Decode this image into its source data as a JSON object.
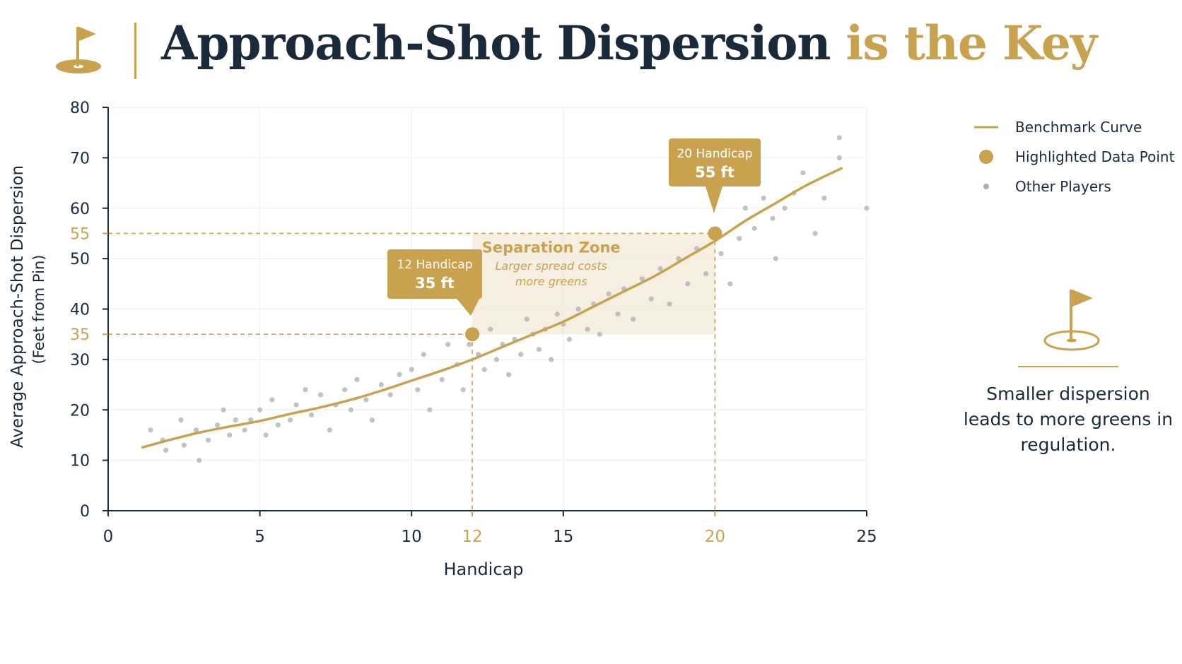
{
  "header": {
    "title_main": "Approach-Shot Dispersion",
    "title_accent": "is the Key",
    "icon": "golf-flag-icon"
  },
  "colors": {
    "gold": "#C9A24F",
    "navy": "#1B2A3A",
    "gray_dots": "#A9AFB6",
    "zone_fill": "#F3E8D6"
  },
  "legend": {
    "curve": "Benchmark Curve",
    "highlight": "Highlighted Data Point",
    "others": "Other Players"
  },
  "side": {
    "icon": "golf-flag-icon",
    "note": "Smaller dispersion leads to more greens in regulation."
  },
  "chart_data": {
    "type": "scatter",
    "xlabel": "Handicap",
    "ylabel": "Average Approach-Shot Dispersion",
    "ylabel_sub": "(Feet from Pin)",
    "xlim": [
      0,
      25
    ],
    "ylim": [
      0,
      80
    ],
    "x_ticks": [
      0,
      5,
      10,
      12,
      15,
      20,
      25
    ],
    "y_ticks": [
      0,
      10,
      20,
      30,
      35,
      40,
      50,
      55,
      60,
      70,
      80
    ],
    "highlight_ticks_x": [
      12,
      20
    ],
    "highlight_ticks_y": [
      35,
      55
    ],
    "grid": true,
    "legend_position": "top-right",
    "benchmark_curve": {
      "name": "Benchmark Curve",
      "x": [
        1.1,
        2,
        3,
        4,
        5,
        6,
        7,
        8,
        9,
        10,
        11,
        12,
        13,
        14,
        15,
        16,
        17,
        18,
        19,
        20,
        21,
        22,
        23,
        24.2
      ],
      "y": [
        12.5,
        14,
        15.5,
        16.7,
        17.8,
        19.2,
        20.5,
        22,
        23.8,
        25.8,
        27.8,
        30,
        32.5,
        35,
        37.5,
        40.5,
        43.5,
        46.5,
        50,
        53.5,
        57.5,
        61,
        64.5,
        68
      ]
    },
    "highlighted_points": [
      {
        "x": 12,
        "y": 35,
        "label_line1": "12 Handicap",
        "label_line2": "35 ft"
      },
      {
        "x": 20,
        "y": 55,
        "label_line1": "20 Handicap",
        "label_line2": "55 ft"
      }
    ],
    "zone": {
      "x_range": [
        12,
        20
      ],
      "title": "Separation Zone",
      "subtitle_line1": "Larger spread costs",
      "subtitle_line2": "more greens"
    },
    "other_players": [
      [
        1.4,
        16
      ],
      [
        1.8,
        14
      ],
      [
        1.9,
        12
      ],
      [
        2.4,
        18
      ],
      [
        2.5,
        13
      ],
      [
        2.9,
        16
      ],
      [
        3,
        10
      ],
      [
        3.3,
        14
      ],
      [
        3.6,
        17
      ],
      [
        3.8,
        20
      ],
      [
        4,
        15
      ],
      [
        4.2,
        18
      ],
      [
        4.5,
        16
      ],
      [
        4.7,
        18
      ],
      [
        5,
        20
      ],
      [
        5.2,
        15
      ],
      [
        5.4,
        22
      ],
      [
        5.6,
        17
      ],
      [
        6,
        18
      ],
      [
        6.2,
        21
      ],
      [
        6.5,
        24
      ],
      [
        6.7,
        19
      ],
      [
        7,
        23
      ],
      [
        7.3,
        16
      ],
      [
        7.5,
        21
      ],
      [
        7.8,
        24
      ],
      [
        8,
        20
      ],
      [
        8.2,
        26
      ],
      [
        8.5,
        22
      ],
      [
        8.7,
        18
      ],
      [
        9,
        25
      ],
      [
        9.3,
        23
      ],
      [
        9.6,
        27
      ],
      [
        10,
        28
      ],
      [
        10.2,
        24
      ],
      [
        10.4,
        31
      ],
      [
        10.6,
        20
      ],
      [
        11,
        26
      ],
      [
        11.2,
        33
      ],
      [
        11.5,
        29
      ],
      [
        11.7,
        24
      ],
      [
        11.9,
        33
      ],
      [
        12.2,
        31
      ],
      [
        12.4,
        28
      ],
      [
        12.6,
        36
      ],
      [
        12.8,
        30
      ],
      [
        13,
        33
      ],
      [
        13.2,
        27
      ],
      [
        13.4,
        34
      ],
      [
        13.6,
        31
      ],
      [
        13.8,
        38
      ],
      [
        14,
        35
      ],
      [
        14.2,
        32
      ],
      [
        14.4,
        36
      ],
      [
        14.6,
        30
      ],
      [
        14.8,
        39
      ],
      [
        15,
        37
      ],
      [
        15.2,
        34
      ],
      [
        15.5,
        40
      ],
      [
        15.8,
        36
      ],
      [
        16,
        41
      ],
      [
        16.2,
        35
      ],
      [
        16.5,
        43
      ],
      [
        16.8,
        39
      ],
      [
        17,
        44
      ],
      [
        17.3,
        38
      ],
      [
        17.6,
        46
      ],
      [
        17.9,
        42
      ],
      [
        18.2,
        48
      ],
      [
        18.5,
        41
      ],
      [
        18.8,
        50
      ],
      [
        19.1,
        45
      ],
      [
        19.4,
        52
      ],
      [
        19.7,
        47
      ],
      [
        20.2,
        51
      ],
      [
        20.5,
        45
      ],
      [
        20.8,
        54
      ],
      [
        21,
        60
      ],
      [
        21.3,
        56
      ],
      [
        21.6,
        62
      ],
      [
        21.9,
        58
      ],
      [
        22,
        50
      ],
      [
        22.3,
        60
      ],
      [
        22.6,
        63
      ],
      [
        22.9,
        67
      ],
      [
        23.3,
        55
      ],
      [
        23.6,
        62
      ],
      [
        24.1,
        74
      ],
      [
        24.1,
        70
      ],
      [
        25,
        60
      ]
    ]
  }
}
